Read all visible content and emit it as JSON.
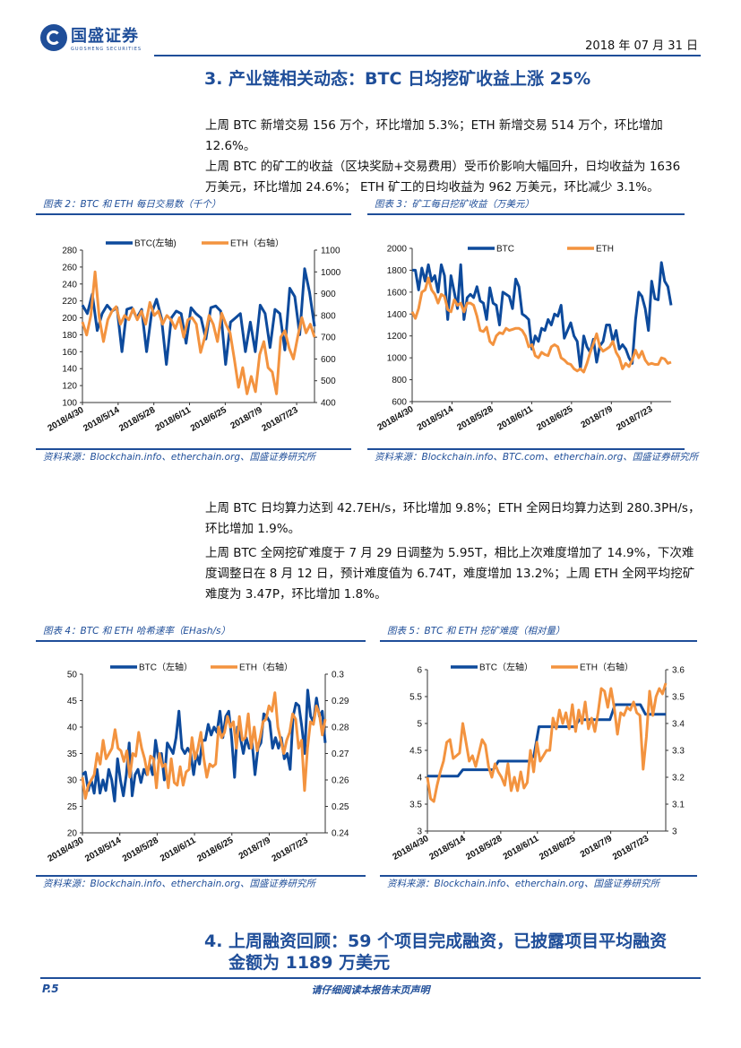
{
  "header": {
    "logo_text": "国盛证券",
    "logo_subtext": "GUOSHENG SECURITIES",
    "date": "2018 年 07 月 31 日"
  },
  "section3": {
    "title": "3. 产业链相关动态：BTC 日均挖矿收益上涨 25%",
    "para1_line1": "上周 BTC 新增交易 156 万个，环比增加 5.3%；ETH 新增交易 514 万个，环比增加 12.6%。",
    "para1_line2": "上周 BTC 的矿工的收益（区块奖励+交易费用）受币价影响大幅回升，日均收益为 1636",
    "para1_line3": "万美元，环比增加 24.6%； ETH 矿工的日均收益为 962 万美元，环比减少 3.1%。",
    "para2": "上周 BTC 日均算力达到 42.7EH/s，环比增加 9.8%；ETH 全网日均算力达到 280.3PH/s，环比增加 1.9%。",
    "para3": "上周 BTC 全网挖矿难度于 7 月 29 日调整为 5.95T，相比上次难度增加了 14.9%，下次难度调整日在 8 月 12 日，预计难度值为 6.74T，难度增加 13.2%；上周 ETH 全网平均挖矿难度为 3.47P，环比增加 1.8%。"
  },
  "figures": [
    {
      "caption": "图表 2：BTC 和 ETH 每日交易数（千个）",
      "source": "资料来源：Blockchain.info、etherchain.org、国盛证券研究所"
    },
    {
      "caption": "图表 3：矿工每日挖矿收益（万美元）",
      "source": "资料来源：Blockchain.info、BTC.com、etherchain.org、国盛证券研究所"
    },
    {
      "caption": "图表 4：BTC 和 ETH 哈希速率（EHash/s）",
      "source": "资料来源：Blockchain.info、etherchain.org、国盛证券研究所"
    },
    {
      "caption": "图表 5：BTC 和 ETH 挖矿难度（相对量）",
      "source": "资料来源：Blockchain.info、etherchain.org、国盛证券研究所"
    }
  ],
  "section4": {
    "title_line1": "4. 上周融资回顾：59 个项目完成融资，已披露项目平均融资",
    "title_line2": "金额为 1189 万美元"
  },
  "footer": {
    "page": "P.5",
    "disclaimer": "请仔细阅读本报告末页声明"
  },
  "colors": {
    "btc": "#0d4a9c",
    "eth": "#f3933f",
    "brand": "#1f4e99"
  },
  "chart_data": [
    {
      "type": "line",
      "title": "BTC 和 ETH 每日交易数（千个）",
      "x_ticks": [
        "2018/4/30",
        "2018/5/14",
        "2018/5/28",
        "2018/6/11",
        "2018/6/25",
        "2018/7/9",
        "2018/7/23"
      ],
      "x_range_days": [
        0,
        91
      ],
      "y_left": {
        "ticks": [
          "100",
          "120",
          "140",
          "160",
          "180",
          "200",
          "220",
          "240",
          "260",
          "280"
        ],
        "range": [
          100,
          280
        ]
      },
      "y_right": {
        "ticks": [
          "400",
          "500",
          "600",
          "700",
          "800",
          "900",
          "1000",
          "1100"
        ],
        "range": [
          400,
          1100
        ]
      },
      "series": [
        {
          "name": "BTC(左轴)",
          "axis": "left",
          "values": [
            215,
            205,
            228,
            185,
            205,
            215,
            208,
            212,
            160,
            210,
            212,
            200,
            210,
            160,
            205,
            222,
            200,
            145,
            200,
            208,
            205,
            170,
            212,
            205,
            200,
            175,
            212,
            214,
            208,
            145,
            195,
            200,
            205,
            160,
            195,
            160,
            215,
            205,
            165,
            210,
            205,
            162,
            235,
            225,
            180,
            258,
            230,
            190
          ]
        },
        {
          "name": "ETH（右轴）",
          "axis": "right",
          "values": [
            770,
            710,
            800,
            1000,
            790,
            680,
            780,
            820,
            840,
            760,
            800,
            780,
            830,
            780,
            820,
            760,
            860,
            800,
            820,
            760,
            800,
            780,
            740,
            790,
            700,
            780,
            790,
            760,
            630,
            700,
            800,
            760,
            680,
            810,
            760,
            720,
            600,
            470,
            560,
            440,
            520,
            450,
            620,
            680,
            560,
            540,
            440,
            700,
            730,
            650,
            600,
            700,
            790,
            720,
            760,
            700
          ]
        }
      ]
    },
    {
      "type": "line",
      "title": "矿工每日挖矿收益（万美元）",
      "x_ticks": [
        "2018/4/30",
        "2018/5/14",
        "2018/5/28",
        "2018/6/11",
        "2018/6/25",
        "2018/7/9",
        "2018/7/23"
      ],
      "x_range_days": [
        0,
        91
      ],
      "y_left": {
        "ticks": [
          "600",
          "800",
          "1000",
          "1200",
          "1400",
          "1600",
          "1800",
          "2000"
        ],
        "range": [
          600,
          2000
        ]
      },
      "series": [
        {
          "name": "BTC",
          "axis": "left",
          "values": [
            1800,
            1800,
            1620,
            1820,
            1700,
            1850,
            1700,
            1750,
            1600,
            1850,
            1750,
            1350,
            1750,
            1600,
            1450,
            1850,
            1350,
            1550,
            1580,
            1550,
            1650,
            1520,
            1500,
            1350,
            1640,
            1500,
            1480,
            1300,
            1600,
            1580,
            1560,
            1450,
            1720,
            1650,
            1400,
            1380,
            1350,
            1080,
            1200,
            1150,
            1270,
            1250,
            1350,
            1300,
            1400,
            1380,
            1480,
            1180,
            1250,
            1320,
            1200,
            1150,
            900,
            1200,
            1100,
            1050,
            1170,
            960,
            1110,
            1150,
            1300,
            1300,
            1150,
            1250,
            1080,
            1120,
            1080,
            1000,
            950,
            1350,
            1600,
            1560,
            1450,
            1250,
            1700,
            1540,
            1530,
            1870,
            1700,
            1650,
            1480
          ]
        },
        {
          "name": "ETH",
          "axis": "left",
          "values": [
            1420,
            1360,
            1450,
            1600,
            1620,
            1730,
            1620,
            1580,
            1500,
            1580,
            1560,
            1440,
            1420,
            1530,
            1480,
            1500,
            1420,
            1500,
            1500,
            1480,
            1380,
            1250,
            1240,
            1280,
            1150,
            1120,
            1200,
            1230,
            1220,
            1270,
            1250,
            1260,
            1270,
            1270,
            1250,
            1200,
            1100,
            1120,
            1020,
            1000,
            1050,
            1030,
            1020,
            1100,
            1120,
            1100,
            1000,
            980,
            950,
            940,
            900,
            880,
            900,
            870,
            950,
            1050,
            1130,
            1220,
            1100,
            1060,
            1080,
            1100,
            1150,
            1050,
            1000,
            900,
            950,
            920,
            980,
            1070,
            1000,
            1060,
            980,
            940,
            950,
            940,
            940,
            1000,
            990,
            950,
            960
          ]
        }
      ]
    },
    {
      "type": "line",
      "title": "BTC 和 ETH 哈希速率（EHash/s）",
      "x_ticks": [
        "2018/4/30",
        "2018/5/14",
        "2018/5/28",
        "2018/6/11",
        "2018/6/25",
        "2018/7/9",
        "2018/7/23"
      ],
      "x_range_days": [
        0,
        91
      ],
      "y_left": {
        "ticks": [
          "20",
          "25",
          "30",
          "35",
          "40",
          "45",
          "50"
        ],
        "range": [
          20,
          50
        ]
      },
      "y_right": {
        "ticks": [
          "0.24",
          "0.25",
          "0.26",
          "0.27",
          "0.28",
          "0.29",
          "0.3"
        ],
        "range": [
          0.24,
          0.3
        ]
      },
      "series": [
        {
          "name": "BTC（左轴）",
          "axis": "left",
          "values": [
            31,
            31.5,
            28,
            30,
            27.5,
            32,
            27.5,
            30,
            28,
            32,
            30,
            26,
            34,
            30,
            27,
            31,
            37,
            27,
            31,
            32,
            29.5,
            32,
            31,
            33,
            31,
            37.5,
            34,
            35,
            30,
            37,
            36,
            35,
            38,
            43,
            36,
            35,
            36,
            35,
            31,
            35,
            33,
            37.5,
            37.5,
            40.5,
            38.5,
            40,
            39,
            43,
            38,
            42,
            43,
            38,
            30.5,
            40,
            38,
            35,
            38,
            36,
            37,
            31,
            36,
            37,
            42.5,
            42,
            41,
            36,
            38,
            36,
            38,
            34,
            35,
            32,
            42,
            44.5,
            44,
            40,
            35,
            47,
            42,
            41,
            45.5,
            42,
            43,
            37
          ]
        },
        {
          "name": "ETH（右轴）",
          "axis": "right",
          "values": [
            0.261,
            0.253,
            0.258,
            0.26,
            0.262,
            0.27,
            0.266,
            0.275,
            0.268,
            0.27,
            0.272,
            0.279,
            0.272,
            0.271,
            0.267,
            0.271,
            0.261,
            0.27,
            0.269,
            0.278,
            0.272,
            0.268,
            0.262,
            0.269,
            0.268,
            0.257,
            0.27,
            0.265,
            0.266,
            0.257,
            0.268,
            0.259,
            0.258,
            0.265,
            0.258,
            0.263,
            0.264,
            0.276,
            0.268,
            0.272,
            0.278,
            0.268,
            0.261,
            0.266,
            0.265,
            0.266,
            0.28,
            0.276,
            0.278,
            0.284,
            0.28,
            0.282,
            0.272,
            0.284,
            0.275,
            0.276,
            0.285,
            0.272,
            0.28,
            0.271,
            0.276,
            0.282,
            0.283,
            0.288,
            0.286,
            0.293,
            0.28,
            0.275,
            0.27,
            0.275,
            0.278,
            0.285,
            0.283,
            0.272,
            0.275,
            0.256,
            0.272,
            0.282,
            0.281,
            0.288,
            0.285,
            0.277,
            0.283
          ]
        }
      ]
    },
    {
      "type": "line",
      "title": "BTC 和 ETH 挖矿难度（相对量）",
      "x_ticks": [
        "2018/4/30",
        "2018/5/14",
        "2018/5/28",
        "2018/6/11",
        "2018/6/25",
        "2018/7/9",
        "2018/7/23"
      ],
      "x_range_days": [
        0,
        91
      ],
      "y_left": {
        "ticks": [
          "3",
          "3.5",
          "4",
          "4.5",
          "5",
          "5.5",
          "6"
        ],
        "range": [
          3,
          6
        ]
      },
      "y_right": {
        "ticks": [
          "3",
          "3.1",
          "3.2",
          "3.3",
          "3.4",
          "3.5",
          "3.6"
        ],
        "range": [
          3.0,
          3.6
        ]
      },
      "series": [
        {
          "name": "BTC（左轴）",
          "axis": "left",
          "values": [
            4.02,
            4.02,
            4.02,
            4.02,
            4.02,
            4.02,
            4.02,
            4.14,
            4.14,
            4.14,
            4.14,
            4.14,
            4.14,
            4.14,
            4.3,
            4.3,
            4.3,
            4.3,
            4.3,
            4.3,
            4.3,
            4.4,
            4.94,
            4.94,
            4.94,
            4.94,
            4.94,
            4.94,
            4.94,
            4.94,
            5.07,
            5.07,
            5.07,
            5.07,
            5.07,
            5.07,
            5.07,
            5.35,
            5.35,
            5.35,
            5.35,
            5.35,
            5.35,
            5.17,
            5.17,
            5.17,
            5.17,
            5.17
          ]
        },
        {
          "name": "ETH（右轴）",
          "axis": "right",
          "values": [
            3.2,
            3.12,
            3.11,
            3.17,
            3.22,
            3.26,
            3.33,
            3.34,
            3.27,
            3.28,
            3.29,
            3.4,
            3.33,
            3.26,
            3.28,
            3.24,
            3.29,
            3.34,
            3.32,
            3.24,
            3.2,
            3.25,
            3.22,
            3.2,
            3.17,
            3.25,
            3.15,
            3.2,
            3.15,
            3.22,
            3.16,
            3.18,
            3.3,
            3.22,
            3.33,
            3.26,
            3.28,
            3.3,
            3.3,
            3.42,
            3.38,
            3.45,
            3.4,
            3.44,
            3.38,
            3.47,
            3.37,
            3.45,
            3.4,
            3.48,
            3.38,
            3.42,
            3.37,
            3.44,
            3.53,
            3.52,
            3.46,
            3.53,
            3.46,
            3.36,
            3.44,
            3.43,
            3.46,
            3.45,
            3.48,
            3.44,
            3.43,
            3.23,
            3.35,
            3.52,
            3.43,
            3.5,
            3.53,
            3.51,
            3.55
          ]
        }
      ]
    }
  ]
}
